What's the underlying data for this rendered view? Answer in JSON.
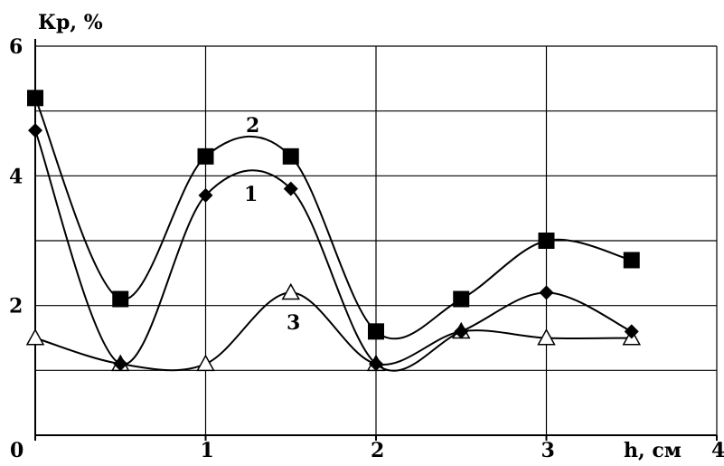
{
  "chart_data": {
    "type": "line",
    "ylabel": "Кр, %",
    "xlabel": "h, см",
    "xlim": [
      0,
      4
    ],
    "ylim": [
      0,
      6
    ],
    "x_ticks": [
      0,
      1,
      2,
      3,
      4
    ],
    "y_ticks_labeled": [
      2,
      4,
      6
    ],
    "x_tick_labels": [
      "0",
      "1",
      "2",
      "3",
      "4"
    ],
    "y_tick_labels": [
      "2",
      "4",
      "6"
    ],
    "grid": true,
    "grid_y_step": 1,
    "grid_x_step": 1,
    "smooth": true,
    "series": [
      {
        "name": "1",
        "marker": "diamond",
        "color": "#000000",
        "x": [
          0,
          0.5,
          1,
          1.5,
          2,
          2.5,
          3,
          3.5
        ],
        "y": [
          4.7,
          1.1,
          3.7,
          3.8,
          1.1,
          1.6,
          2.2,
          1.6
        ]
      },
      {
        "name": "2",
        "marker": "square",
        "color": "#000000",
        "x": [
          0,
          0.5,
          1,
          1.5,
          2,
          2.5,
          3,
          3.5
        ],
        "y": [
          5.2,
          2.1,
          4.3,
          4.3,
          1.6,
          2.1,
          3.0,
          2.7
        ]
      },
      {
        "name": "3",
        "marker": "triangle",
        "color": "#000000",
        "x": [
          0,
          0.5,
          1,
          1.5,
          2,
          2.5,
          3,
          3.5
        ],
        "y": [
          1.5,
          1.1,
          1.1,
          2.2,
          1.1,
          1.6,
          1.5,
          1.5
        ]
      }
    ]
  }
}
